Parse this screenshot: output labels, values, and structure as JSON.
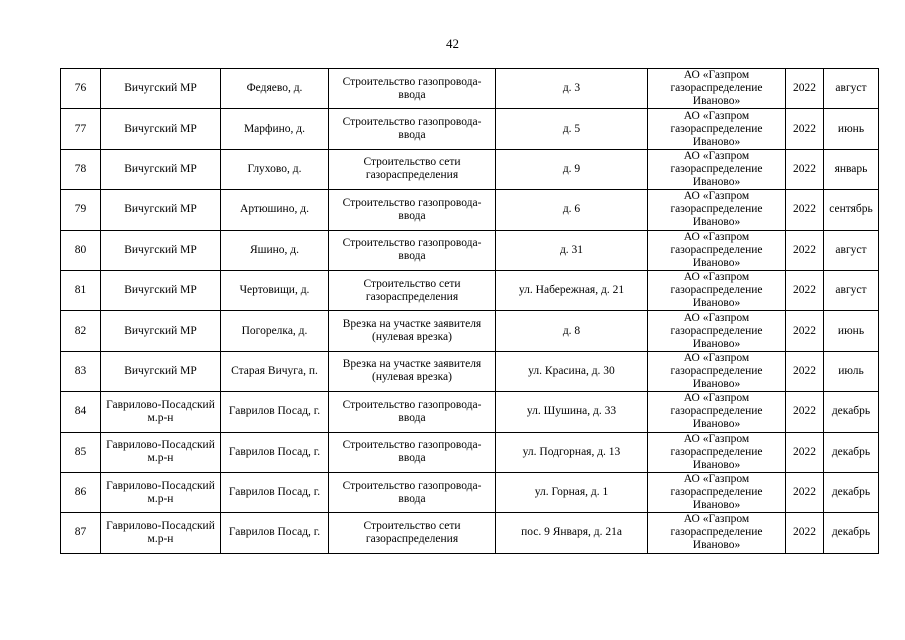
{
  "page_number": "42",
  "rows": [
    {
      "num": "76",
      "district": "Вичугский МР",
      "locality": "Федяево, д.",
      "work": "Строительство газопровода-ввода",
      "address": "д. 3",
      "org": "АО «Газпром газораспределение Иваново»",
      "year": "2022",
      "month": "август"
    },
    {
      "num": "77",
      "district": "Вичугский МР",
      "locality": "Марфино, д.",
      "work": "Строительство газопровода-ввода",
      "address": "д. 5",
      "org": "АО «Газпром газораспределение Иваново»",
      "year": "2022",
      "month": "июнь"
    },
    {
      "num": "78",
      "district": "Вичугский МР",
      "locality": "Глухово, д.",
      "work": "Строительство сети газораспределения",
      "address": "д. 9",
      "org": "АО «Газпром газораспределение Иваново»",
      "year": "2022",
      "month": "январь"
    },
    {
      "num": "79",
      "district": "Вичугский МР",
      "locality": "Артюшино, д.",
      "work": "Строительство газопровода-ввода",
      "address": "д. 6",
      "org": "АО «Газпром газораспределение Иваново»",
      "year": "2022",
      "month": "сентябрь"
    },
    {
      "num": "80",
      "district": "Вичугский МР",
      "locality": "Яшино, д.",
      "work": "Строительство газопровода-ввода",
      "address": "д. 31",
      "org": "АО «Газпром газораспределение Иваново»",
      "year": "2022",
      "month": "август"
    },
    {
      "num": "81",
      "district": "Вичугский МР",
      "locality": "Чертовищи, д.",
      "work": "Строительство сети газораспределения",
      "address": "ул. Набережная, д. 21",
      "org": "АО «Газпром газораспределение Иваново»",
      "year": "2022",
      "month": "август"
    },
    {
      "num": "82",
      "district": "Вичугский МР",
      "locality": "Погорелка, д.",
      "work": "Врезка на участке заявителя (нулевая врезка)",
      "address": "д. 8",
      "org": "АО «Газпром газораспределение Иваново»",
      "year": "2022",
      "month": "июнь"
    },
    {
      "num": "83",
      "district": "Вичугский МР",
      "locality": "Старая Вичуга, п.",
      "work": "Врезка на участке заявителя (нулевая врезка)",
      "address": "ул. Красина, д. 30",
      "org": "АО «Газпром газораспределение Иваново»",
      "year": "2022",
      "month": "июль"
    },
    {
      "num": "84",
      "district": "Гаврилово-Посадский м.р-н",
      "locality": "Гаврилов Посад, г.",
      "work": "Строительство газопровода-ввода",
      "address": "ул. Шушина, д. 33",
      "org": "АО «Газпром газораспределение Иваново»",
      "year": "2022",
      "month": "декабрь"
    },
    {
      "num": "85",
      "district": "Гаврилово-Посадский м.р-н",
      "locality": "Гаврилов Посад, г.",
      "work": "Строительство газопровода-ввода",
      "address": "ул. Подгорная, д. 13",
      "org": "АО «Газпром газораспределение Иваново»",
      "year": "2022",
      "month": "декабрь"
    },
    {
      "num": "86",
      "district": "Гаврилово-Посадский м.р-н",
      "locality": "Гаврилов Посад, г.",
      "work": "Строительство газопровода-ввода",
      "address": "ул. Горная, д. 1",
      "org": "АО «Газпром газораспределение Иваново»",
      "year": "2022",
      "month": "декабрь"
    },
    {
      "num": "87",
      "district": "Гаврилово-Посадский м.р-н",
      "locality": "Гаврилов Посад, г.",
      "work": "Строительство сети газораспределения",
      "address": "пос. 9 Января, д. 21а",
      "org": "АО «Газпром газораспределение Иваново»",
      "year": "2022",
      "month": "декабрь"
    }
  ]
}
